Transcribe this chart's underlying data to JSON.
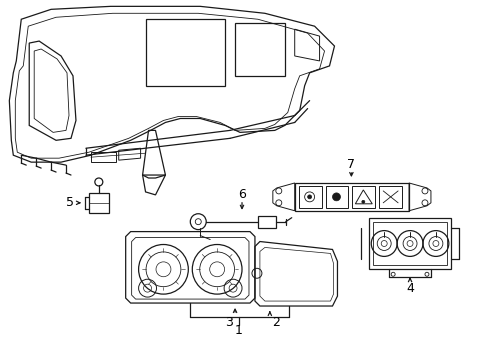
{
  "background_color": "#ffffff",
  "line_color": "#1a1a1a",
  "label_color": "#000000",
  "fig_width": 4.89,
  "fig_height": 3.6,
  "dpi": 100,
  "gray_color": "#888888",
  "dark_gray": "#444444"
}
